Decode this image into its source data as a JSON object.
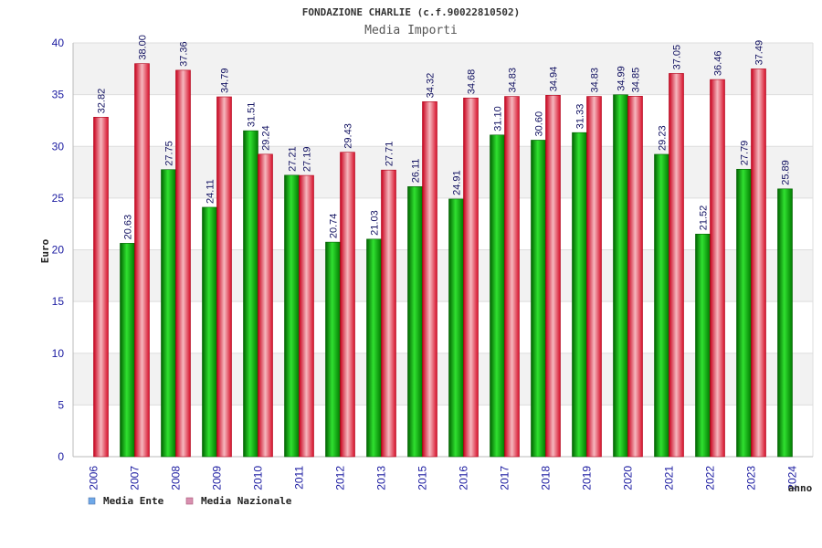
{
  "chart_data": {
    "type": "bar",
    "title": "FONDAZIONE CHARLIE (c.f.90022810502)",
    "subtitle": "Media Importi",
    "xlabel": "anno",
    "ylabel": "Euro",
    "ylim": [
      0,
      40
    ],
    "yticks": [
      0,
      5,
      10,
      15,
      20,
      25,
      30,
      35,
      40
    ],
    "grid": true,
    "legend_position": "bottom-left",
    "categories": [
      "2006",
      "2007",
      "2008",
      "2009",
      "2010",
      "2011",
      "2012",
      "2013",
      "2015",
      "2016",
      "2017",
      "2018",
      "2019",
      "2020",
      "2021",
      "2022",
      "2023",
      "2024"
    ],
    "series": [
      {
        "name": "Media Ente",
        "color": "#00a000",
        "legend_color": "#6ea8e8",
        "values": [
          null,
          20.63,
          27.75,
          24.11,
          31.51,
          27.21,
          20.74,
          21.03,
          26.11,
          24.91,
          31.1,
          30.6,
          31.33,
          34.99,
          29.23,
          21.52,
          27.79,
          25.89
        ],
        "labels": [
          "",
          "20.63",
          "27.75",
          "24.11",
          "31.51",
          "27.21",
          "20.74",
          "21.03",
          "26.11",
          "24.91",
          "31.10",
          "30.60",
          "31.33",
          "34.99",
          "29.23",
          "21.52",
          "27.79",
          "25.89"
        ]
      },
      {
        "name": "Media Nazionale",
        "color": "#e02030",
        "legend_color": "#d890b0",
        "values": [
          32.82,
          38.0,
          37.36,
          34.79,
          29.24,
          27.19,
          29.43,
          27.71,
          34.32,
          34.68,
          34.83,
          34.94,
          34.83,
          34.85,
          37.05,
          36.46,
          37.49,
          null
        ],
        "labels": [
          "32.82",
          "38.00",
          "37.36",
          "34.79",
          "29.24",
          "27.19",
          "29.43",
          "27.71",
          "34.32",
          "34.68",
          "34.83",
          "34.94",
          "34.83",
          "34.85",
          "37.05",
          "36.46",
          "37.49",
          ""
        ]
      }
    ]
  }
}
